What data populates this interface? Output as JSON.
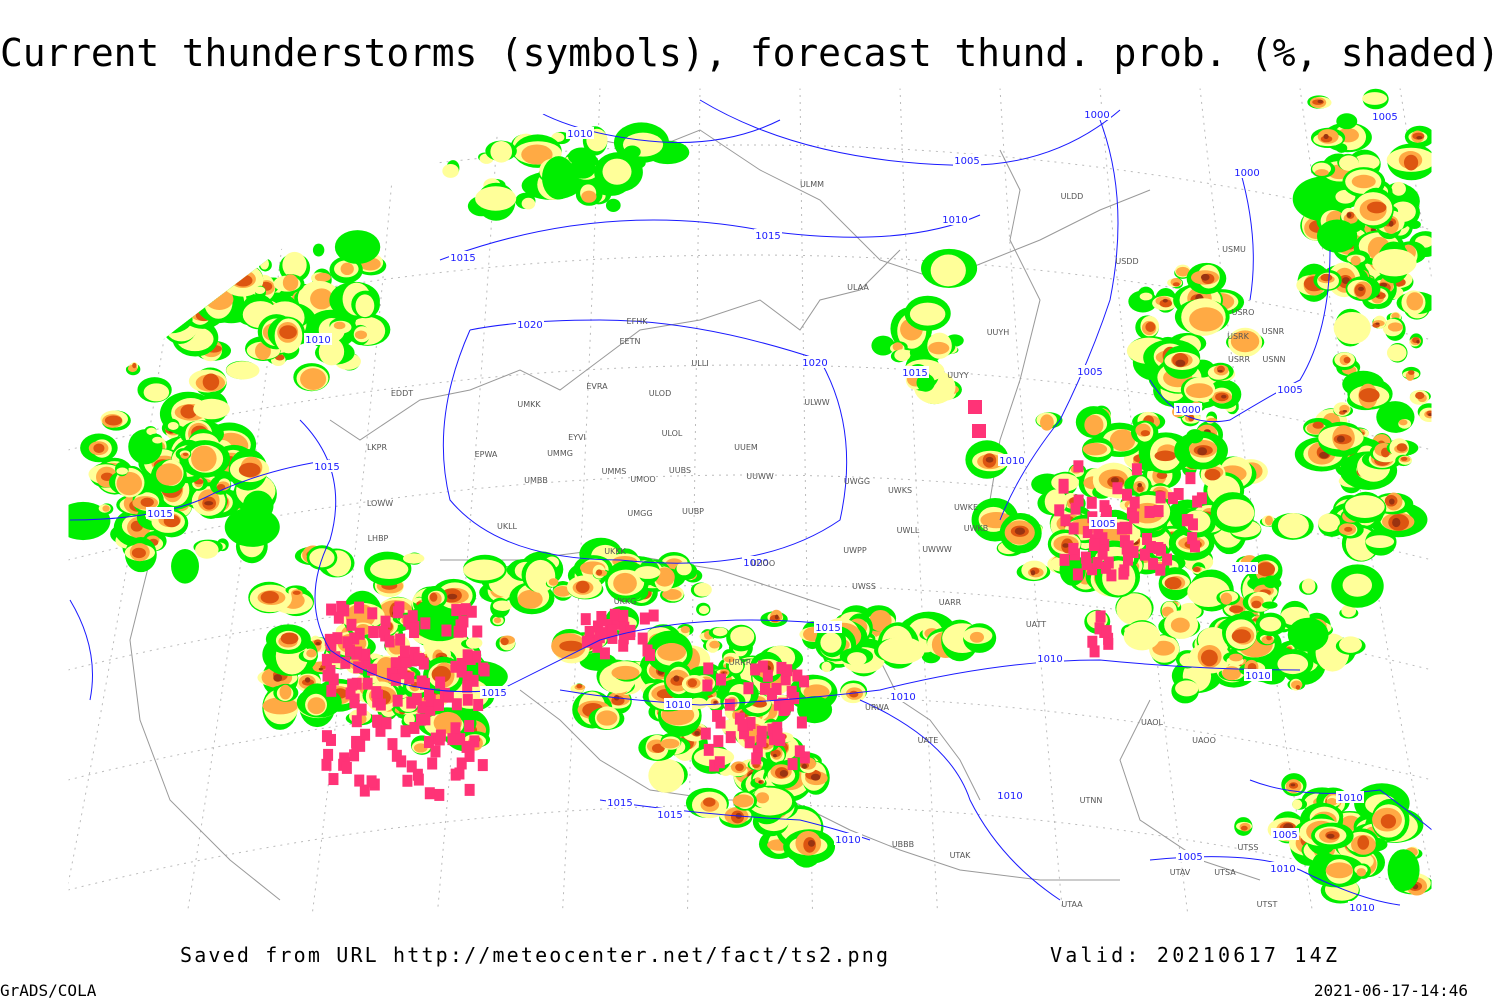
{
  "title": "Current thunderstorms (symbols), forecast thund. prob. (%, shaded)",
  "footer": {
    "source": "Saved from URL http://meteocenter.net/fact/ts2.png",
    "valid": "Valid: 20210617 14Z",
    "software": "GrADS/COLA",
    "timestamp": "2021-06-17-14:46"
  },
  "isobar_labels": [
    "1010",
    "1005",
    "1000",
    "1010",
    "1015",
    "1015",
    "1010",
    "1020",
    "1020",
    "1015",
    "1005",
    "1000",
    "1005",
    "1000",
    "1005",
    "1015",
    "1015",
    "1005",
    "1010",
    "1015",
    "1010",
    "1010",
    "1015",
    "1010",
    "1010",
    "1015",
    "1015",
    "1010",
    "1010",
    "1005",
    "1005",
    "1010",
    "1010",
    "1010",
    "1020",
    "1010"
  ],
  "stations": [
    "ULMM",
    "ULDD",
    "USDD",
    "USMU",
    "ULAA",
    "EFHK",
    "EETN",
    "ULLI",
    "UUYY",
    "UUYH",
    "USRO",
    "USRK",
    "USNR",
    "USRR",
    "USNN",
    "EDDT",
    "EVRA",
    "ULOD",
    "UMKK",
    "ULWW",
    "EYVI",
    "ULOL",
    "UUEM",
    "LKPR",
    "EPWA",
    "UMMG",
    "UMMS",
    "UMOO",
    "UUBS",
    "UUWW",
    "UMBB",
    "UWGG",
    "UWKS",
    "UWKE",
    "LOWW",
    "UMGG",
    "UUBP",
    "UKLL",
    "UWLL",
    "UWKB",
    "LHBP",
    "UKKK",
    "UUOO",
    "UWPP",
    "UWWW",
    "UWSS",
    "UARR",
    "UATT",
    "UAOL",
    "UAOO",
    "UTNN",
    "UTAK",
    "UBBB",
    "UTAV",
    "UTAA",
    "UTST",
    "UTSS",
    "UTSA",
    "URWA",
    "UATE",
    "URRR",
    "UKKG"
  ]
}
